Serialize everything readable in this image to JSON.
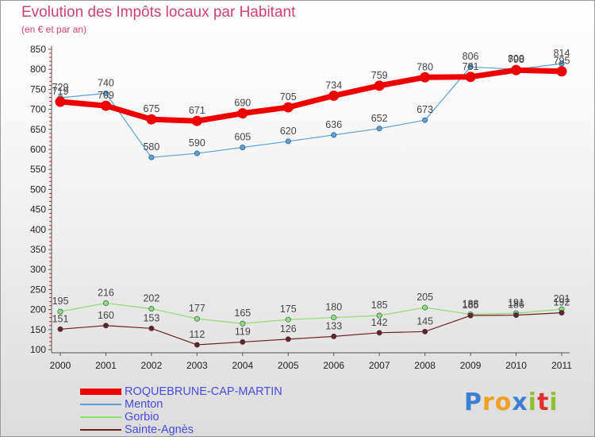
{
  "chart_data": {
    "type": "line",
    "title": "Evolution des Impôts locaux par Habitant",
    "subtitle": "(en € et par an)",
    "xlabel": "",
    "ylabel": "",
    "categories": [
      "2000",
      "2001",
      "2002",
      "2003",
      "2004",
      "2005",
      "2006",
      "2007",
      "2008",
      "2009",
      "2010",
      "2011"
    ],
    "ylim": [
      100,
      850
    ],
    "yticks": [
      100,
      150,
      200,
      250,
      300,
      350,
      400,
      450,
      500,
      550,
      600,
      650,
      700,
      750,
      800,
      850
    ],
    "grid": false,
    "legend_position": "bottom-left",
    "series": [
      {
        "name": "ROQUEBRUNE-CAP-MARTIN",
        "color": "#ee0000",
        "values": [
          719,
          709,
          675,
          671,
          690,
          705,
          734,
          759,
          780,
          781,
          798,
          795
        ],
        "labels": [
          "719",
          "709",
          "675",
          "671",
          "690",
          "705",
          "734",
          "759",
          "780",
          "781",
          "798",
          "795"
        ]
      },
      {
        "name": "Menton",
        "color": "#5aa0d8",
        "values": [
          729,
          740,
          580,
          590,
          605,
          620,
          636,
          652,
          673,
          806,
          800,
          814
        ],
        "labels": [
          "729",
          "740",
          "580",
          "590",
          "605",
          "620",
          "636",
          "652",
          "673",
          "806",
          "800",
          "814"
        ]
      },
      {
        "name": "Gorbio",
        "color": "#90dd70",
        "values": [
          195,
          216,
          202,
          177,
          165,
          175,
          180,
          185,
          205,
          188,
          191,
          201
        ],
        "labels": [
          "195",
          "216",
          "202",
          "177",
          "165",
          "175",
          "180",
          "185",
          "205",
          "188",
          "191",
          "201"
        ]
      },
      {
        "name": "Sainte-Agnès",
        "color": "#6e2020",
        "values": [
          151,
          160,
          153,
          112,
          119,
          126,
          133,
          142,
          145,
          185,
          186,
          192
        ],
        "labels": [
          "151",
          "160",
          "153",
          "112",
          "119",
          "126",
          "133",
          "142",
          "145",
          "185",
          "186",
          "192"
        ]
      }
    ]
  },
  "logo": {
    "letters": [
      "P",
      "r",
      "o",
      "x",
      "i",
      "t",
      "i"
    ],
    "colors": [
      "#3a7fd0",
      "#f0a020",
      "#f0a020",
      "#3a7fd0",
      "#90c030",
      "#e03030",
      "#90c030"
    ]
  }
}
